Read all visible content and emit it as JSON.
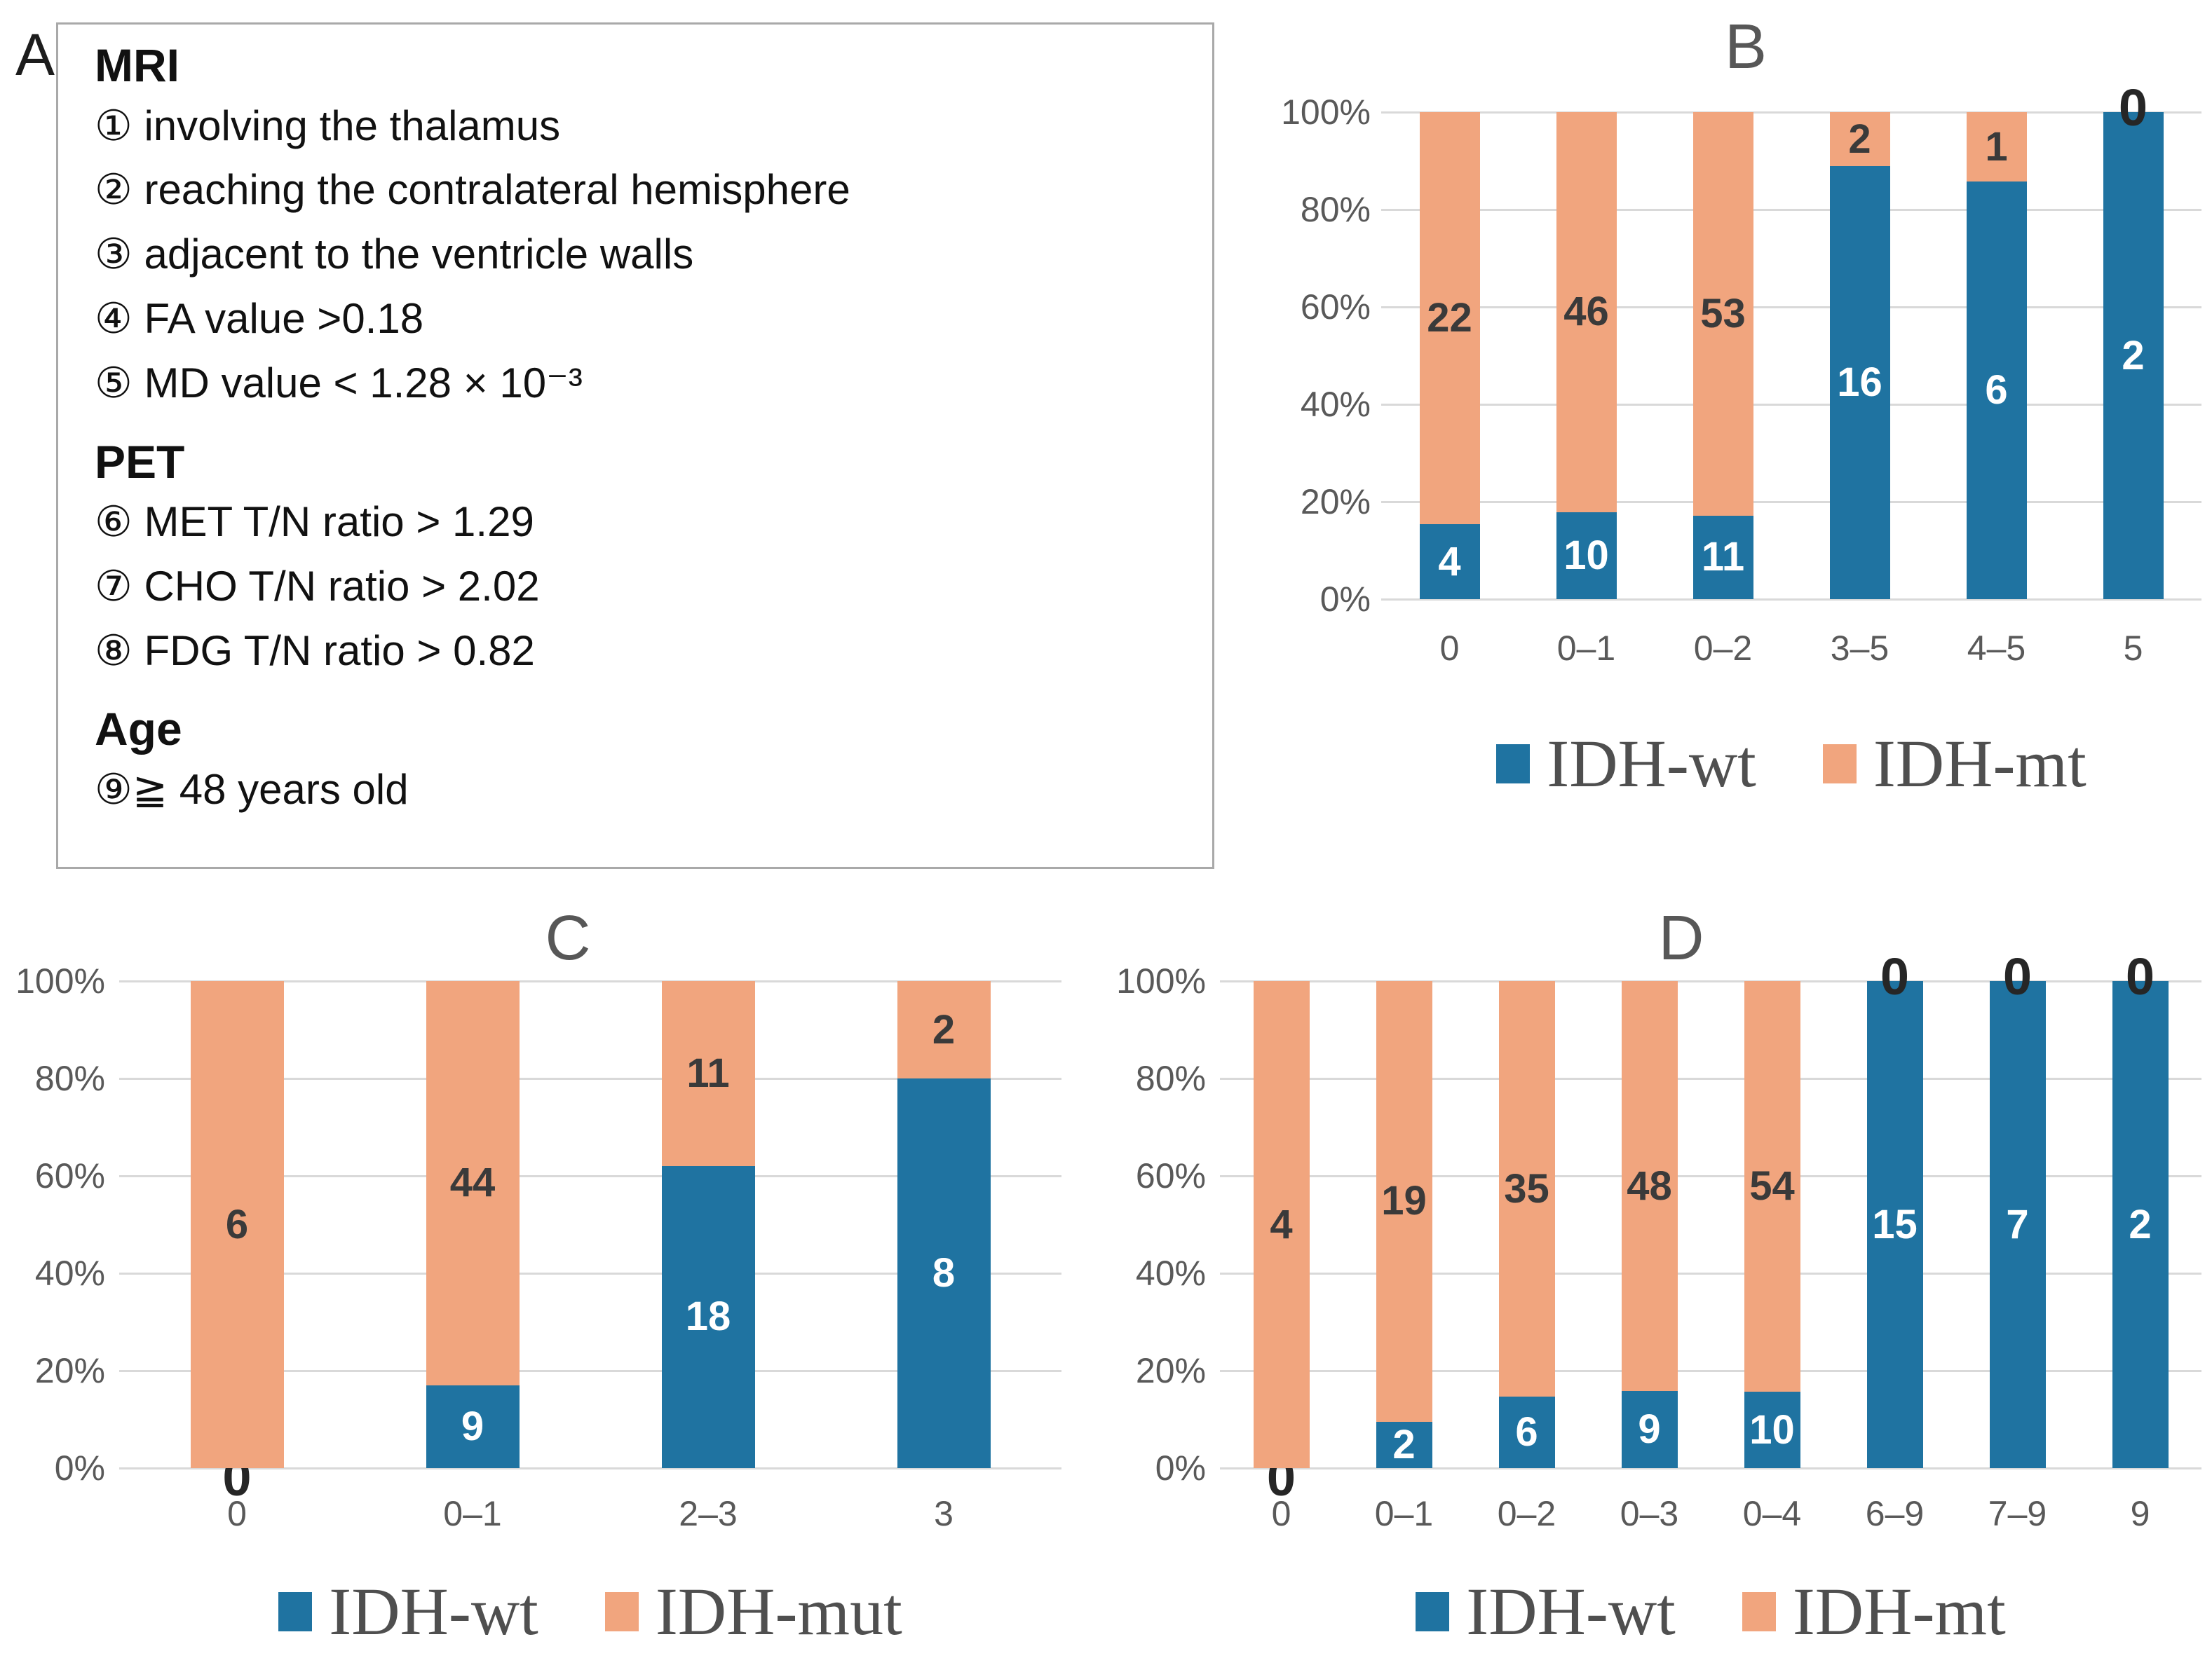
{
  "figure": {
    "background": "#FFFFFF"
  },
  "colors": {
    "idh_wt": "#1F73A1",
    "idh_mt": "#F1A57E",
    "label_on_wt": "#FFFFFF",
    "label_on_mt": "#3A3A3A",
    "zero_label": "#262626",
    "axis_text": "#595959",
    "gridline": "#D9D9D9",
    "panel_letter": "#575757",
    "panel_letter_a": "#1C1C1C",
    "legend_text": "#4F4F4F",
    "box_border": "#A9A9A9",
    "body_text": "#111111"
  },
  "panel_a": {
    "label": "A",
    "sections": [
      {
        "heading": "MRI",
        "items": [
          "① involving the thalamus",
          "② reaching the contralateral hemisphere",
          "③ adjacent to the ventricle walls",
          "④ FA value >0.18",
          "⑤ MD value < 1.28 × 10⁻³"
        ]
      },
      {
        "heading": "PET",
        "items": [
          "⑥ MET T/N ratio > 1.29",
          "⑦ CHO T/N ratio > 2.02",
          "⑧ FDG T/N ratio > 0.82"
        ]
      },
      {
        "heading": "Age",
        "items": [
          "⑨≧ 48 years old"
        ]
      }
    ]
  },
  "chart_data": [
    {
      "id": "B",
      "type": "bar",
      "stacked": true,
      "percent_axis": true,
      "title": "B",
      "categories": [
        "0",
        "0–1",
        "0–2",
        "3–5",
        "4–5",
        "5"
      ],
      "series": [
        {
          "name": "IDH-wt",
          "color_key": "idh_wt",
          "label_color_key": "label_on_wt",
          "values": [
            4,
            10,
            11,
            16,
            6,
            2
          ]
        },
        {
          "name": "IDH-mt",
          "color_key": "idh_mt",
          "label_color_key": "label_on_mt",
          "values": [
            22,
            46,
            53,
            2,
            1,
            0
          ]
        }
      ],
      "yticks": [
        "100%",
        "80%",
        "60%",
        "40%",
        "20%",
        "0%"
      ],
      "ylim": [
        0,
        100
      ],
      "grid": true,
      "legend_position": "bottom"
    },
    {
      "id": "C",
      "type": "bar",
      "stacked": true,
      "percent_axis": true,
      "title": "C",
      "categories": [
        "0",
        "0–1",
        "2–3",
        "3"
      ],
      "series": [
        {
          "name": "IDH-wt",
          "color_key": "idh_wt",
          "label_color_key": "label_on_wt",
          "values": [
            0,
            9,
            18,
            8
          ]
        },
        {
          "name": "IDH-mut",
          "color_key": "idh_mt",
          "label_color_key": "label_on_mt",
          "values": [
            6,
            44,
            11,
            2
          ]
        }
      ],
      "yticks": [
        "100%",
        "80%",
        "60%",
        "40%",
        "20%",
        "0%"
      ],
      "ylim": [
        0,
        100
      ],
      "grid": true,
      "legend_position": "bottom"
    },
    {
      "id": "D",
      "type": "bar",
      "stacked": true,
      "percent_axis": true,
      "title": "D",
      "categories": [
        "0",
        "0–1",
        "0–2",
        "0–3",
        "0–4",
        "6–9",
        "7–9",
        "9"
      ],
      "series": [
        {
          "name": "IDH-wt",
          "color_key": "idh_wt",
          "label_color_key": "label_on_wt",
          "values": [
            0,
            2,
            6,
            9,
            10,
            15,
            7,
            2
          ]
        },
        {
          "name": "IDH-mt",
          "color_key": "idh_mt",
          "label_color_key": "label_on_mt",
          "values": [
            4,
            19,
            35,
            48,
            54,
            0,
            0,
            0
          ]
        }
      ],
      "yticks": [
        "100%",
        "80%",
        "60%",
        "40%",
        "20%",
        "0%"
      ],
      "ylim": [
        0,
        100
      ],
      "grid": true,
      "legend_position": "bottom"
    }
  ]
}
